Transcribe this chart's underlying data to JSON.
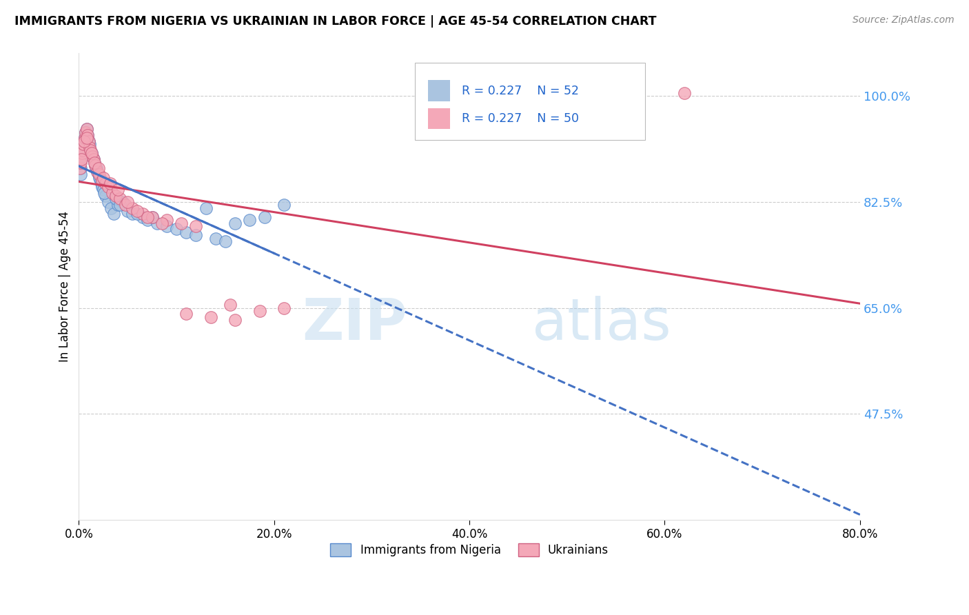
{
  "title": "IMMIGRANTS FROM NIGERIA VS UKRAINIAN IN LABOR FORCE | AGE 45-54 CORRELATION CHART",
  "source": "Source: ZipAtlas.com",
  "xlabel_vals": [
    0.0,
    20.0,
    40.0,
    60.0,
    80.0
  ],
  "ylabel_vals": [
    47.5,
    65.0,
    82.5,
    100.0
  ],
  "xlim": [
    0.0,
    80.0
  ],
  "ylim": [
    30.0,
    107.0
  ],
  "nigeria_color": "#aac4e0",
  "ukraine_color": "#f4a8b8",
  "nigeria_edge": "#5588cc",
  "ukraine_edge": "#d06080",
  "trend_nigeria_color": "#4472c4",
  "trend_ukraine_color": "#d04060",
  "legend_r_nigeria": "R = 0.227",
  "legend_n_nigeria": "N = 52",
  "legend_r_ukraine": "R = 0.227",
  "legend_n_ukraine": "N = 50",
  "ylabel": "In Labor Force | Age 45-54",
  "watermark_zip": "ZIP",
  "watermark_atlas": "atlas",
  "nigeria_x": [
    0.2,
    0.3,
    0.4,
    0.5,
    0.6,
    0.7,
    0.8,
    0.9,
    1.0,
    1.1,
    1.2,
    1.3,
    1.4,
    1.5,
    1.6,
    1.7,
    1.8,
    1.9,
    2.0,
    2.1,
    2.2,
    2.3,
    2.4,
    2.5,
    2.7,
    3.0,
    3.3,
    3.6,
    4.0,
    4.5,
    5.0,
    5.5,
    6.5,
    7.0,
    8.0,
    9.0,
    10.0,
    11.0,
    12.0,
    14.0,
    15.0,
    16.0,
    17.5,
    19.0,
    6.0,
    7.5,
    13.0,
    2.6,
    3.8,
    4.2,
    0.15,
    21.0
  ],
  "nigeria_y": [
    88.0,
    90.0,
    91.5,
    92.0,
    93.0,
    94.0,
    94.5,
    93.5,
    92.5,
    92.0,
    91.0,
    90.5,
    90.0,
    89.5,
    89.0,
    88.5,
    88.0,
    87.5,
    87.0,
    86.5,
    86.0,
    85.5,
    85.0,
    84.5,
    83.5,
    82.5,
    81.5,
    80.5,
    82.0,
    82.5,
    81.0,
    80.5,
    80.0,
    79.5,
    79.0,
    78.5,
    78.0,
    77.5,
    77.0,
    76.5,
    76.0,
    79.0,
    79.5,
    80.0,
    80.5,
    80.0,
    81.5,
    84.0,
    83.0,
    82.0,
    87.0,
    82.0
  ],
  "ukraine_x": [
    0.1,
    0.2,
    0.3,
    0.4,
    0.5,
    0.6,
    0.7,
    0.8,
    0.9,
    1.0,
    1.1,
    1.2,
    1.4,
    1.5,
    1.7,
    1.9,
    2.1,
    2.4,
    2.7,
    3.0,
    3.4,
    3.8,
    4.2,
    4.8,
    5.5,
    6.5,
    7.5,
    9.0,
    11.0,
    13.5,
    16.0,
    18.5,
    21.0,
    10.5,
    15.5,
    0.25,
    0.55,
    0.85,
    1.3,
    1.6,
    2.0,
    2.5,
    3.2,
    4.0,
    5.0,
    6.0,
    7.0,
    8.5,
    12.0,
    62.0
  ],
  "ukraine_y": [
    88.0,
    89.0,
    90.5,
    91.0,
    92.0,
    93.0,
    94.0,
    94.5,
    93.5,
    92.5,
    91.5,
    91.0,
    90.0,
    89.5,
    88.5,
    87.5,
    87.0,
    86.0,
    85.5,
    85.0,
    84.0,
    83.5,
    83.0,
    82.0,
    81.5,
    80.5,
    80.0,
    79.5,
    64.0,
    63.5,
    63.0,
    64.5,
    65.0,
    79.0,
    65.5,
    89.5,
    92.5,
    93.0,
    90.5,
    89.0,
    88.0,
    86.5,
    85.5,
    84.5,
    82.5,
    81.0,
    80.0,
    79.0,
    78.5,
    100.5
  ]
}
